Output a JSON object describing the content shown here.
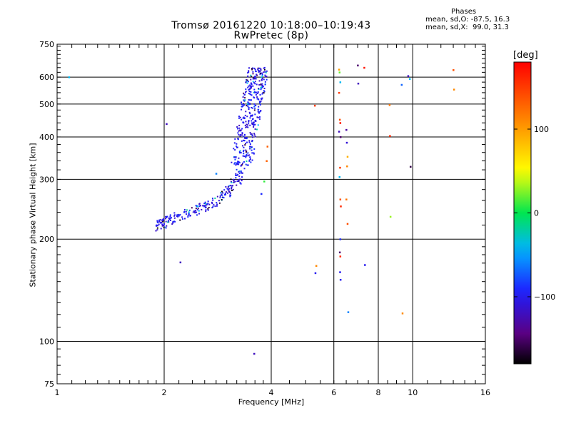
{
  "title": {
    "line1": "Tromsø 20161220 10:18:00–10:19:43",
    "line2": "RwPretec (8p)"
  },
  "phase_box": {
    "title": "Phases",
    "line_o": "mean, sd,O: -87.5, 16.3",
    "line_x": "mean, sd,X:  99.0, 31.3"
  },
  "colorbar": {
    "unit": "[deg]",
    "ticks": [
      "100",
      "0",
      "−100"
    ],
    "tick_values": [
      100,
      0,
      -100
    ],
    "range": [
      -180,
      180
    ]
  },
  "chart_data": {
    "type": "scatter",
    "xlabel": "Frequency [MHz]",
    "ylabel": "Stationary phase Virtual Height [km]",
    "xscale": "log",
    "yscale": "log",
    "xlim": [
      1,
      16
    ],
    "ylim": [
      75,
      750
    ],
    "xticks": [
      1,
      2,
      4,
      6,
      8,
      10,
      16
    ],
    "xtick_labels": [
      "1",
      "2",
      "4",
      "6",
      "8",
      "10",
      "16"
    ],
    "yticks": [
      75,
      100,
      200,
      300,
      400,
      500,
      600,
      750
    ],
    "ytick_labels": [
      "75",
      "100",
      "200",
      "300",
      "400",
      "500",
      "600",
      "750"
    ],
    "grid": true,
    "color_encoding": "phase [deg]",
    "trace": [
      [
        1.92,
        218,
        -100
      ],
      [
        1.95,
        222,
        -110
      ],
      [
        2.0,
        224,
        -105
      ],
      [
        2.1,
        228,
        -100
      ],
      [
        2.2,
        233,
        -95
      ],
      [
        2.35,
        240,
        -100
      ],
      [
        2.5,
        246,
        -105
      ],
      [
        2.65,
        252,
        -100
      ],
      [
        2.8,
        260,
        -110
      ],
      [
        2.95,
        270,
        -100
      ],
      [
        3.05,
        280,
        -120
      ],
      [
        3.15,
        292,
        -105
      ],
      [
        3.25,
        305,
        -100
      ],
      [
        3.3,
        330,
        -95
      ],
      [
        3.35,
        360,
        -100
      ],
      [
        3.4,
        400,
        -105
      ],
      [
        3.45,
        440,
        -100
      ],
      [
        3.5,
        480,
        -95
      ],
      [
        3.55,
        520,
        -100
      ],
      [
        3.6,
        560,
        -105
      ],
      [
        3.65,
        600,
        -100
      ],
      [
        3.7,
        640,
        -110
      ]
    ],
    "points": [
      [
        1.08,
        600,
        -40
      ],
      [
        2.03,
        437,
        -120
      ],
      [
        2.22,
        171,
        -120
      ],
      [
        2.48,
        250,
        -40
      ],
      [
        2.8,
        312,
        -60
      ],
      [
        3.58,
        92,
        -120
      ],
      [
        3.75,
        272,
        -90
      ],
      [
        3.9,
        375,
        130
      ],
      [
        3.88,
        340,
        130
      ],
      [
        3.82,
        296,
        10
      ],
      [
        5.3,
        495,
        150
      ],
      [
        5.35,
        167,
        110
      ],
      [
        5.32,
        159,
        -100
      ],
      [
        6.2,
        632,
        100
      ],
      [
        6.22,
        620,
        20
      ],
      [
        6.25,
        580,
        -40
      ],
      [
        6.2,
        540,
        150
      ],
      [
        6.23,
        450,
        140
      ],
      [
        6.25,
        440,
        170
      ],
      [
        6.2,
        415,
        -120
      ],
      [
        6.26,
        400,
        -150
      ],
      [
        6.24,
        325,
        150
      ],
      [
        6.22,
        305,
        -40
      ],
      [
        6.25,
        262,
        140
      ],
      [
        6.27,
        250,
        160
      ],
      [
        6.25,
        200,
        -90
      ],
      [
        6.23,
        183,
        -150
      ],
      [
        6.25,
        178,
        160
      ],
      [
        6.24,
        160,
        -100
      ],
      [
        6.26,
        152,
        -100
      ],
      [
        6.5,
        420,
        -130
      ],
      [
        6.52,
        385,
        -110
      ],
      [
        6.55,
        350,
        90
      ],
      [
        6.53,
        328,
        110
      ],
      [
        6.5,
        262,
        120
      ],
      [
        6.55,
        222,
        140
      ],
      [
        6.58,
        122,
        -60
      ],
      [
        7.0,
        650,
        -150
      ],
      [
        7.02,
        575,
        -120
      ],
      [
        7.3,
        640,
        170
      ],
      [
        7.33,
        168,
        -100
      ],
      [
        8.6,
        497,
        120
      ],
      [
        8.62,
        403,
        160
      ],
      [
        8.65,
        233,
        30
      ],
      [
        9.3,
        570,
        -70
      ],
      [
        9.35,
        121,
        110
      ],
      [
        9.7,
        605,
        -120
      ],
      [
        9.8,
        593,
        -40
      ],
      [
        9.85,
        327,
        -160
      ],
      [
        13.0,
        630,
        140
      ],
      [
        13.05,
        552,
        110
      ]
    ]
  }
}
